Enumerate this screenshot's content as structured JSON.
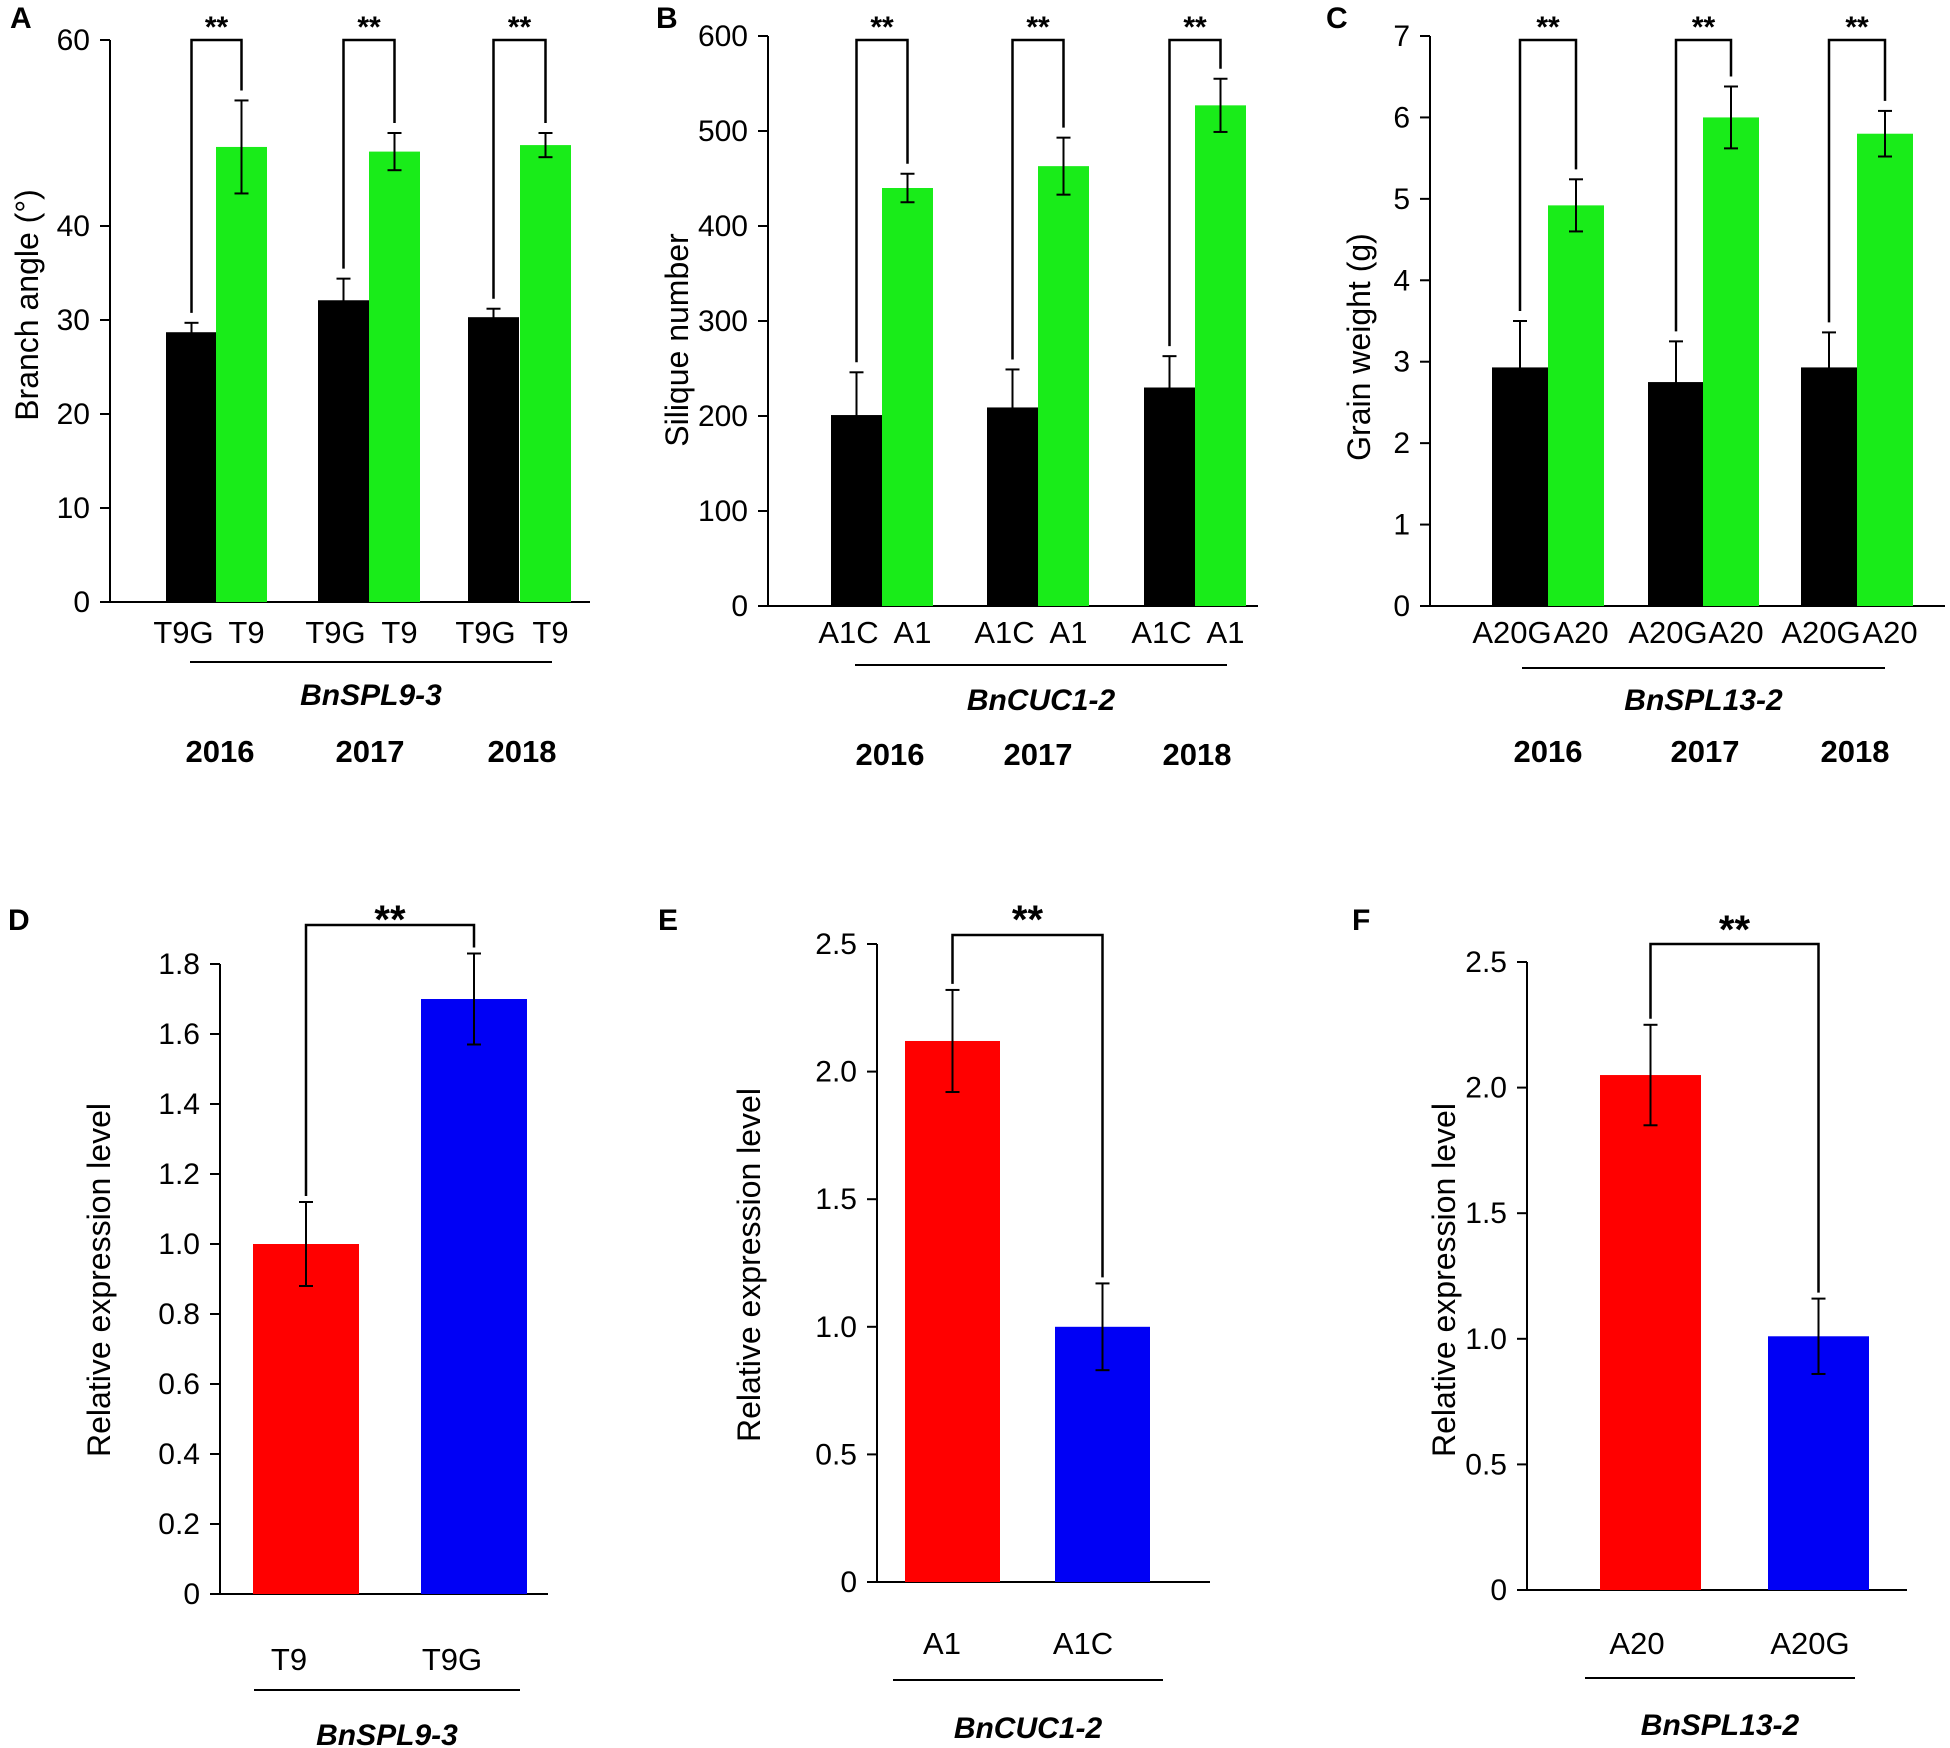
{
  "figure": {
    "colors": {
      "black": "#000000",
      "green": "#19ec19",
      "red": "#ff0000",
      "blue": "#0000f5"
    }
  },
  "chart_data": [
    {
      "panel": "A",
      "type": "bar",
      "ylabel": "Branch angle (°)",
      "ylim": [
        0,
        60
      ],
      "yticks": [
        "0",
        "10",
        "20",
        "30",
        "40",
        "60"
      ],
      "categories": [
        "T9G",
        "T9",
        "T9G",
        "T9",
        "T9G",
        "T9"
      ],
      "gene": "BnSPL9-3",
      "years": [
        "2016",
        "2017",
        "2018"
      ],
      "groups": [
        {
          "bars": [
            {
              "label": "T9G",
              "value": 28.7,
              "err": 1.0,
              "color": "black"
            },
            {
              "label": "T9",
              "value": 48.5,
              "err": 5.0,
              "color": "green"
            }
          ],
          "sig": "**"
        },
        {
          "bars": [
            {
              "label": "T9G",
              "value": 32.1,
              "err": 2.3,
              "color": "black"
            },
            {
              "label": "T9",
              "value": 48.0,
              "err": 2.0,
              "color": "green"
            }
          ],
          "sig": "**"
        },
        {
          "bars": [
            {
              "label": "T9G",
              "value": 30.3,
              "err": 0.9,
              "color": "black"
            },
            {
              "label": "T9",
              "value": 48.7,
              "err": 1.3,
              "color": "green"
            }
          ],
          "sig": "**"
        }
      ]
    },
    {
      "panel": "B",
      "type": "bar",
      "ylabel": "Silique number",
      "ylim": [
        0,
        600
      ],
      "yticks": [
        "0",
        "100",
        "200",
        "300",
        "400",
        "500",
        "600"
      ],
      "categories": [
        "A1C",
        "A1",
        "A1C",
        "A1",
        "A1C",
        "A1"
      ],
      "gene": "BnCUC1-2",
      "years": [
        "2016",
        "2017",
        "2018"
      ],
      "groups": [
        {
          "bars": [
            {
              "label": "A1C",
              "value": 201,
              "err": 45,
              "color": "black"
            },
            {
              "label": "A1",
              "value": 440,
              "err": 15,
              "color": "green"
            }
          ],
          "sig": "**"
        },
        {
          "bars": [
            {
              "label": "A1C",
              "value": 209,
              "err": 40,
              "color": "black"
            },
            {
              "label": "A1",
              "value": 463,
              "err": 30,
              "color": "green"
            }
          ],
          "sig": "**"
        },
        {
          "bars": [
            {
              "label": "A1C",
              "value": 230,
              "err": 33,
              "color": "black"
            },
            {
              "label": "A1",
              "value": 527,
              "err": 28,
              "color": "green"
            }
          ],
          "sig": "**"
        }
      ]
    },
    {
      "panel": "C",
      "type": "bar",
      "ylabel": "Grain weight (g)",
      "ylim": [
        0,
        7
      ],
      "yticks": [
        "0",
        "1",
        "2",
        "3",
        "4",
        "5",
        "6",
        "7"
      ],
      "categories": [
        "A20G",
        "A20",
        "A20G",
        "A20",
        "A20G",
        "A20"
      ],
      "gene": "BnSPL13-2",
      "years": [
        "2016",
        "2017",
        "2018"
      ],
      "groups": [
        {
          "bars": [
            {
              "label": "A20G",
              "value": 2.93,
              "err": 0.57,
              "color": "black"
            },
            {
              "label": "A20",
              "value": 4.92,
              "err": 0.32,
              "color": "green"
            }
          ],
          "sig": "**"
        },
        {
          "bars": [
            {
              "label": "A20G",
              "value": 2.75,
              "err": 0.5,
              "color": "black"
            },
            {
              "label": "A20",
              "value": 6.0,
              "err": 0.38,
              "color": "green"
            }
          ],
          "sig": "**"
        },
        {
          "bars": [
            {
              "label": "A20G",
              "value": 2.93,
              "err": 0.43,
              "color": "black"
            },
            {
              "label": "A20",
              "value": 5.8,
              "err": 0.28,
              "color": "green"
            }
          ],
          "sig": "**"
        }
      ]
    },
    {
      "panel": "D",
      "type": "bar",
      "ylabel": "Relative expression level",
      "ylim": [
        0,
        1.8
      ],
      "yticks": [
        "0",
        "0.2",
        "0.4",
        "0.6",
        "0.8",
        "1.0",
        "1.2",
        "1.4",
        "1.6",
        "1.8"
      ],
      "categories": [
        "T9",
        "T9G"
      ],
      "gene": "BnSPL9-3",
      "bars": [
        {
          "label": "T9",
          "value": 1.0,
          "err": 0.12,
          "color": "red"
        },
        {
          "label": "T9G",
          "value": 1.7,
          "err": 0.13,
          "color": "blue"
        }
      ],
      "sig": "**"
    },
    {
      "panel": "E",
      "type": "bar",
      "ylabel": "Relative expression level",
      "ylim": [
        0,
        2.5
      ],
      "yticks": [
        "0",
        "0.5",
        "1.0",
        "1.5",
        "2.0",
        "2.5"
      ],
      "categories": [
        "A1",
        "A1C"
      ],
      "gene": "BnCUC1-2",
      "bars": [
        {
          "label": "A1",
          "value": 2.12,
          "err": 0.2,
          "color": "red"
        },
        {
          "label": "A1C",
          "value": 1.0,
          "err": 0.17,
          "color": "blue"
        }
      ],
      "sig": "**"
    },
    {
      "panel": "F",
      "type": "bar",
      "ylabel": "Relative expression level",
      "ylim": [
        0,
        2.5
      ],
      "yticks": [
        "0",
        "0.5",
        "1.0",
        "1.5",
        "2.0",
        "2.5"
      ],
      "categories": [
        "A20",
        "A20G"
      ],
      "gene": "BnSPL13-2",
      "bars": [
        {
          "label": "A20",
          "value": 2.05,
          "err": 0.2,
          "color": "red"
        },
        {
          "label": "A20G",
          "value": 1.01,
          "err": 0.15,
          "color": "blue"
        }
      ],
      "sig": "**"
    }
  ]
}
